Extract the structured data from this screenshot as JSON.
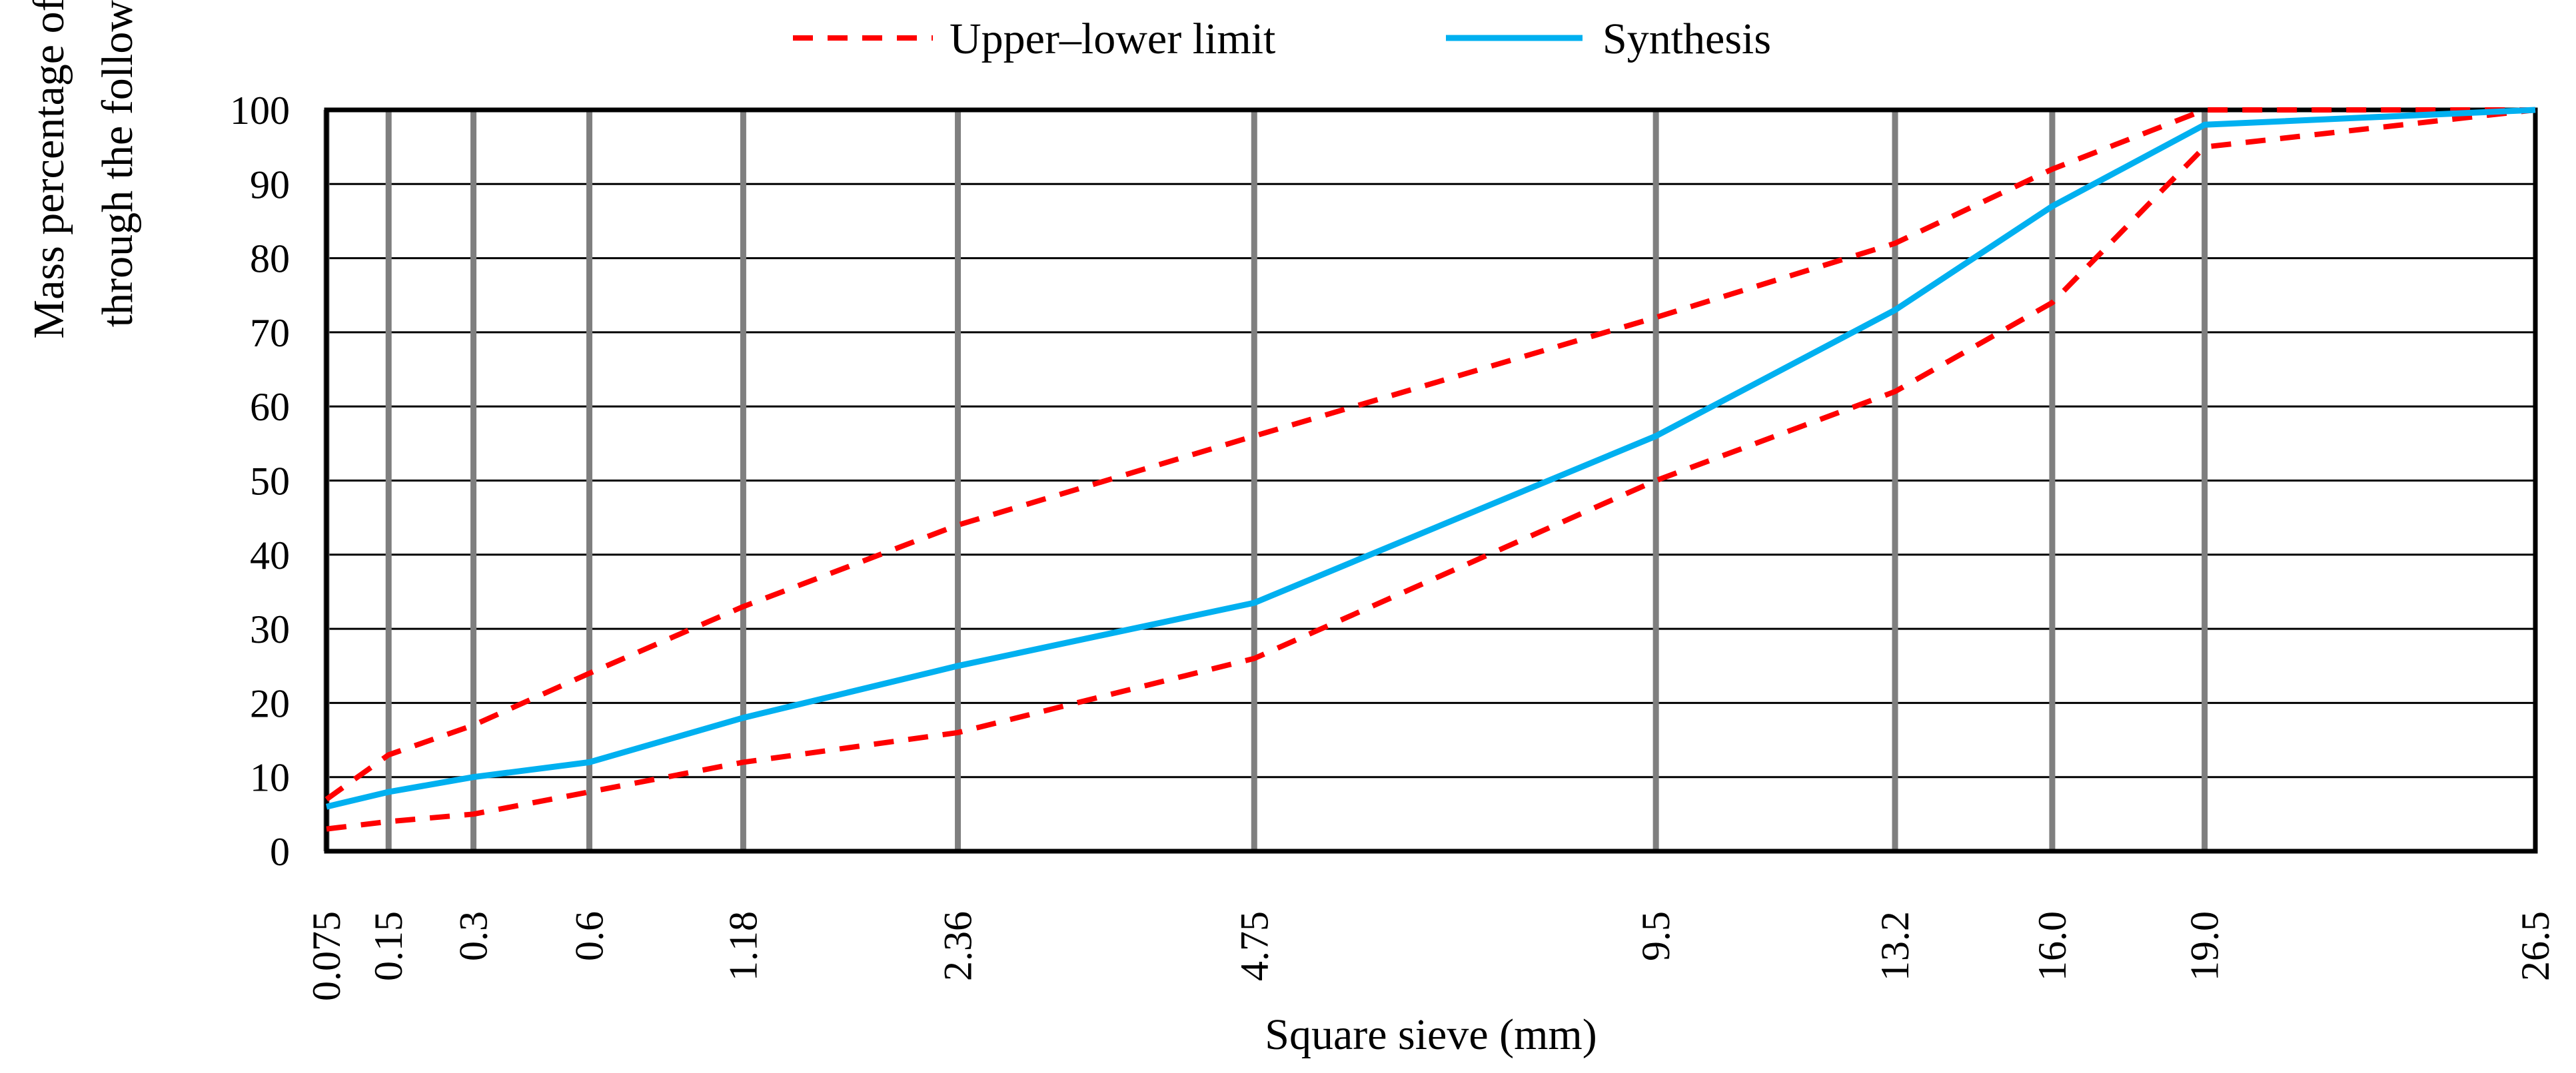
{
  "chart_data": {
    "type": "line",
    "xlabel": "Square sieve (mm)",
    "ylabel_lines": [
      "Mass percentage of aggregate passing",
      "through the following sieve holes(%)"
    ],
    "x_ticks": [
      "0.075",
      "0.15",
      "0.3",
      "0.6",
      "1.18",
      "2.36",
      "4.75",
      "9.5",
      "13.2",
      "16.0",
      "19.0",
      "26.5"
    ],
    "x_scale": "power 0.45 (gradation chart)",
    "y_ticks": [
      "0",
      "10",
      "20",
      "30",
      "40",
      "50",
      "60",
      "70",
      "80",
      "90",
      "100"
    ],
    "ylim": [
      0,
      100
    ],
    "grid": true,
    "legend_position": "top",
    "legend": [
      {
        "label": "Upper–lower limit",
        "style": "dashed",
        "color": "#ff0000"
      },
      {
        "label": "Synthesis",
        "style": "solid",
        "color": "#00b0f0"
      }
    ],
    "series": [
      {
        "legend_ref": "Upper–lower limit",
        "bound": "upper",
        "color": "#ff0000",
        "style": "dashed",
        "x": [
          0.075,
          0.15,
          0.3,
          0.6,
          1.18,
          2.36,
          4.75,
          9.5,
          13.2,
          16.0,
          19.0,
          26.5
        ],
        "y": [
          7,
          13,
          17,
          24,
          33,
          44,
          56,
          72,
          82,
          92,
          100,
          100
        ]
      },
      {
        "legend_ref": "Upper–lower limit",
        "bound": "lower",
        "color": "#ff0000",
        "style": "dashed",
        "x": [
          0.075,
          0.15,
          0.3,
          0.6,
          1.18,
          2.36,
          4.75,
          9.5,
          13.2,
          16.0,
          19.0,
          26.5
        ],
        "y": [
          3,
          4,
          5,
          8,
          12,
          16,
          26,
          50,
          62,
          74,
          95,
          100
        ]
      },
      {
        "legend_ref": "Synthesis",
        "color": "#00b0f0",
        "style": "solid",
        "x": [
          0.075,
          0.15,
          0.3,
          0.6,
          1.18,
          2.36,
          4.75,
          9.5,
          13.2,
          16.0,
          19.0,
          26.5
        ],
        "y": [
          6,
          8,
          10,
          12,
          18,
          25,
          33.5,
          56,
          73,
          87,
          98,
          100
        ]
      }
    ]
  }
}
